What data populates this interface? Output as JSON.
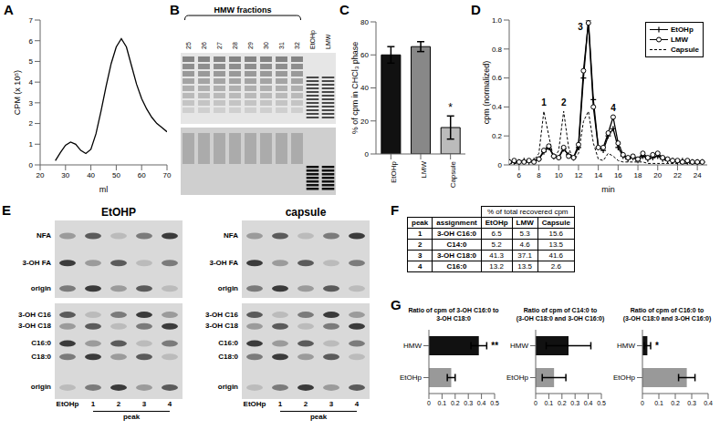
{
  "chart_data": [
    {
      "panel": "A",
      "type": "line",
      "x_label": "ml",
      "y_label": "CPM (x 10⁵)",
      "x": [
        20,
        22,
        24,
        26,
        28,
        30,
        32,
        34,
        36,
        38,
        40,
        42,
        44,
        46,
        48,
        50,
        52,
        54,
        56,
        58,
        60,
        62,
        64,
        66,
        68,
        70
      ],
      "values": [
        null,
        null,
        null,
        0.2,
        0.6,
        0.95,
        1.1,
        1.0,
        0.7,
        0.55,
        0.75,
        1.5,
        2.6,
        3.8,
        4.9,
        5.7,
        6.1,
        5.7,
        4.8,
        3.9,
        3.2,
        2.7,
        2.3,
        2.0,
        1.8,
        1.6
      ],
      "color": "#000000",
      "xlim": [
        20,
        70
      ],
      "xticks": [
        20,
        30,
        40,
        50,
        60,
        70
      ],
      "ylim": [
        0,
        7
      ],
      "yticks": [
        0,
        1,
        2,
        3,
        4,
        5,
        6,
        7
      ]
    },
    {
      "panel": "C",
      "type": "bar",
      "y_label": "% of cpm in CHCl₃ phase",
      "categories": [
        "EtOHp",
        "LMW",
        "Capsule"
      ],
      "values": [
        60,
        65,
        16
      ],
      "error": [
        5,
        3,
        7
      ],
      "colors": [
        "#111111",
        "#888888",
        "#bbbbbb"
      ],
      "ylim": [
        0,
        80
      ],
      "yticks": [
        0,
        20,
        40,
        60,
        80
      ],
      "annotations": [
        {
          "category": "Capsule",
          "text": "*"
        }
      ]
    },
    {
      "panel": "D",
      "type": "line",
      "x_label": "min",
      "y_label": "cpm (normalized)",
      "x": [
        5,
        5.5,
        6,
        6.5,
        7,
        7.5,
        8,
        8.5,
        9,
        9.5,
        10,
        10.5,
        11,
        11.5,
        12,
        12.5,
        13,
        13.5,
        14,
        14.5,
        15,
        15.5,
        16,
        16.5,
        17,
        17.5,
        18,
        18.5,
        19,
        19.5,
        20,
        20.5,
        21,
        21.5,
        22,
        22.5,
        23,
        23.5,
        24,
        24.5
      ],
      "series": [
        {
          "name": "EtOHp",
          "color": "#000000",
          "marker": "plus",
          "line_style": "solid",
          "values": [
            0.02,
            0.02,
            0.02,
            0.03,
            0.02,
            0.03,
            0.04,
            0.09,
            0.12,
            0.06,
            0.05,
            0.11,
            0.07,
            0.05,
            0.12,
            0.6,
            1.0,
            0.45,
            0.12,
            0.1,
            0.2,
            0.25,
            0.12,
            0.06,
            0.04,
            0.05,
            0.03,
            0.06,
            0.04,
            0.05,
            0.06,
            0.04,
            0.03,
            0.03,
            0.02,
            0.03,
            0.02,
            0.02,
            0.02,
            0.02
          ]
        },
        {
          "name": "LMW",
          "color": "#000000",
          "marker": "circle",
          "line_style": "solid",
          "values": [
            0.02,
            0.03,
            0.02,
            0.02,
            0.03,
            0.02,
            0.04,
            0.1,
            0.13,
            0.06,
            0.05,
            0.12,
            0.06,
            0.05,
            0.14,
            0.65,
            0.98,
            0.4,
            0.12,
            0.12,
            0.22,
            0.33,
            0.15,
            0.07,
            0.05,
            0.06,
            0.04,
            0.08,
            0.05,
            0.07,
            0.08,
            0.05,
            0.04,
            0.03,
            0.03,
            0.02,
            0.03,
            0.02,
            0.02,
            0.02
          ]
        },
        {
          "name": "Capsule",
          "color": "#000000",
          "marker": "none",
          "line_style": "dashed",
          "values": [
            0.01,
            0.01,
            0.01,
            0.02,
            0.02,
            0.03,
            0.08,
            0.37,
            0.2,
            0.04,
            0.1,
            0.37,
            0.12,
            0.03,
            0.08,
            0.3,
            0.37,
            0.15,
            0.04,
            0.03,
            0.08,
            0.06,
            0.03,
            0.02,
            0.02,
            0.02,
            0.02,
            0.02,
            0.01,
            0.01,
            0.01,
            0.01,
            0.01,
            0.01,
            0.01,
            0.01,
            0.01,
            0.01,
            0.01,
            0.01
          ]
        }
      ],
      "xlim": [
        5,
        25
      ],
      "xticks": [
        6,
        8,
        10,
        12,
        14,
        16,
        18,
        20,
        22,
        24
      ],
      "ylim": [
        0,
        1
      ],
      "yticks": [
        0,
        0.2,
        0.4,
        0.6,
        0.8,
        {
          "value": 1,
          "label": "1.0"
        }
      ],
      "legend": "upper right",
      "annotations": [
        {
          "x": 8.5,
          "y": 0.38,
          "text": "1"
        },
        {
          "x": 10.5,
          "y": 0.38,
          "text": "2"
        },
        {
          "x": 12.2,
          "y": 0.9,
          "text": "3"
        },
        {
          "x": 15.5,
          "y": 0.34,
          "text": "4"
        }
      ]
    },
    {
      "panel": "G",
      "type": "bar",
      "orientation": "horizontal",
      "title": "Ratio of cpm of 3-OH C16:0 to\n3-OH C18:0",
      "categories": [
        "HMW",
        "EtOHp"
      ],
      "values": [
        0.38,
        0.17
      ],
      "error": [
        0.06,
        0.03
      ],
      "colors": [
        "#111111",
        "#999999"
      ],
      "xlim": [
        0,
        0.5
      ],
      "xticks": [
        0,
        0.1,
        0.2,
        0.3,
        0.4,
        0.5
      ],
      "annotations": [
        {
          "category": "HMW",
          "text": "**"
        }
      ]
    },
    {
      "type": "bar",
      "orientation": "horizontal",
      "title": "Ratio of cpm of C14:0 to\n(3-OH C18:0 and 3-OH C16:0)",
      "categories": [
        "HMW",
        "EtOHp"
      ],
      "values": [
        0.25,
        0.14
      ],
      "error": [
        0.17,
        0.09
      ],
      "colors": [
        "#111111",
        "#999999"
      ],
      "xlim": [
        0,
        0.5
      ],
      "xticks": [
        0,
        0.1,
        0.2,
        0.3,
        0.4,
        0.5
      ],
      "annotations": []
    },
    {
      "type": "bar",
      "orientation": "horizontal",
      "title": "Ratio of cpm of C16:0 to\n(3-OH C18:0 and 3-OH C16:0)",
      "categories": [
        "HMW",
        "EtOHp"
      ],
      "values": [
        0.03,
        0.27
      ],
      "error": [
        0.02,
        0.05
      ],
      "colors": [
        "#111111",
        "#999999"
      ],
      "xlim": [
        0,
        0.4
      ],
      "xticks": [
        0,
        0.1,
        0.2,
        0.3,
        0.4
      ],
      "annotations": [
        {
          "category": "HMW",
          "text": "*"
        }
      ]
    }
  ],
  "panel_B": {
    "panel": "B",
    "header": "HMW fractions",
    "lanes": [
      "25",
      "26",
      "27",
      "28",
      "29",
      "30",
      "31",
      "32",
      "EtOHp",
      "LMW"
    ]
  },
  "panel_E": {
    "panel": "E",
    "plates": [
      {
        "title": "EtOHP",
        "top_rows": [
          "NFA",
          "3-OH FA",
          "origin"
        ],
        "bottom_rows": [
          "3-OH C16",
          "3-OH C18",
          "C16:0",
          "C18:0",
          "origin"
        ],
        "lanes": [
          "EtOHp",
          "1",
          "2",
          "3",
          "4"
        ],
        "lane_caption": "peak"
      },
      {
        "title": "capsule",
        "top_rows": [
          "NFA",
          "3-OH FA",
          "origin"
        ],
        "bottom_rows": [
          "3-OH C16",
          "3-OH C18",
          "C16:0",
          "C18:0",
          "origin"
        ],
        "lanes": [
          "EtOHp",
          "1",
          "2",
          "3",
          "4"
        ],
        "lane_caption": "peak"
      }
    ]
  },
  "panel_F": {
    "panel": "F",
    "caption": "% of total recovered cpm",
    "header": [
      "peak",
      "assignment",
      "EtOHp",
      "LMW",
      "Capsule"
    ],
    "rows": [
      [
        1,
        "3-OH C16:0",
        6.5,
        5.3,
        15.6
      ],
      [
        2,
        "C14:0",
        5.2,
        4.6,
        13.5
      ],
      [
        3,
        "3-OH C18:0",
        41.3,
        37.1,
        41.6
      ],
      [
        4,
        "C16:0",
        13.2,
        13.5,
        2.6
      ]
    ]
  }
}
